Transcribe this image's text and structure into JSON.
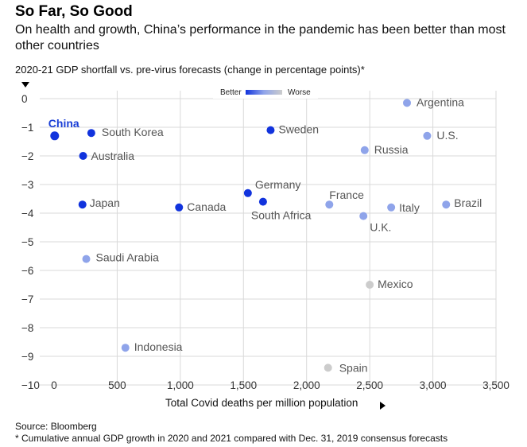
{
  "title": "So Far, So Good",
  "subtitle": "On health and growth, China’s performance in the pandemic has been better than most other countries",
  "source": "Source: Bloomberg",
  "footnote": "* Cumulative annual GDP growth in 2020 and 2021 compared with Dec. 31, 2019 consensus forecasts",
  "chart_data": {
    "type": "scatter",
    "title": "So Far, So Good",
    "xlabel": "Total Covid deaths per million population",
    "ylabel": "2020-21 GDP shortfall vs. pre-virus forecasts (change in percentage points)*",
    "xlim": [
      0,
      3500
    ],
    "ylim": [
      -10,
      0
    ],
    "x_ticks": [
      "0",
      "500",
      "1,000",
      "1,500",
      "2,000",
      "2,500",
      "3,000",
      "3,500"
    ],
    "x_tick_values": [
      0,
      500,
      1000,
      1500,
      2000,
      2500,
      3000,
      3500
    ],
    "y_ticks": [
      "0",
      "−1",
      "−2",
      "−3",
      "−4",
      "−5",
      "−6",
      "−7",
      "−8",
      "−9",
      "−10"
    ],
    "y_tick_values": [
      0,
      -1,
      -2,
      -3,
      -4,
      -5,
      -6,
      -7,
      -8,
      -9,
      -10
    ],
    "grid": true,
    "legend": {
      "better_label": "Better",
      "worse_label": "Worse",
      "placement": "top-center"
    },
    "colors": {
      "better": "#1133dd",
      "mid": "#8fa4ea",
      "worse": "#cccccc",
      "highlight_label": "#1a3fd6"
    },
    "points": [
      {
        "name": "China",
        "x": 5,
        "y": -1.3,
        "tone": "better",
        "highlight": true
      },
      {
        "name": "South Korea",
        "x": 295,
        "y": -1.2,
        "tone": "better"
      },
      {
        "name": "Australia",
        "x": 230,
        "y": -2.0,
        "tone": "better"
      },
      {
        "name": "Japan",
        "x": 225,
        "y": -3.7,
        "tone": "better"
      },
      {
        "name": "Canada",
        "x": 990,
        "y": -3.8,
        "tone": "better"
      },
      {
        "name": "Germany",
        "x": 1535,
        "y": -3.3,
        "tone": "better"
      },
      {
        "name": "South Africa",
        "x": 1655,
        "y": -3.6,
        "tone": "better"
      },
      {
        "name": "Sweden",
        "x": 1715,
        "y": -1.1,
        "tone": "better"
      },
      {
        "name": "Saudi Arabia",
        "x": 255,
        "y": -5.6,
        "tone": "mid"
      },
      {
        "name": "Indonesia",
        "x": 565,
        "y": -8.7,
        "tone": "mid"
      },
      {
        "name": "France",
        "x": 2180,
        "y": -3.7,
        "tone": "mid"
      },
      {
        "name": "U.K.",
        "x": 2450,
        "y": -4.1,
        "tone": "mid"
      },
      {
        "name": "Italy",
        "x": 2670,
        "y": -3.8,
        "tone": "mid"
      },
      {
        "name": "Brazil",
        "x": 3105,
        "y": -3.7,
        "tone": "mid"
      },
      {
        "name": "Russia",
        "x": 2460,
        "y": -1.8,
        "tone": "mid"
      },
      {
        "name": "Argentina",
        "x": 2795,
        "y": -0.15,
        "tone": "mid"
      },
      {
        "name": "U.S.",
        "x": 2955,
        "y": -1.3,
        "tone": "mid"
      },
      {
        "name": "Mexico",
        "x": 2500,
        "y": -6.5,
        "tone": "worse"
      },
      {
        "name": "Spain",
        "x": 2170,
        "y": -9.4,
        "tone": "worse"
      }
    ]
  }
}
